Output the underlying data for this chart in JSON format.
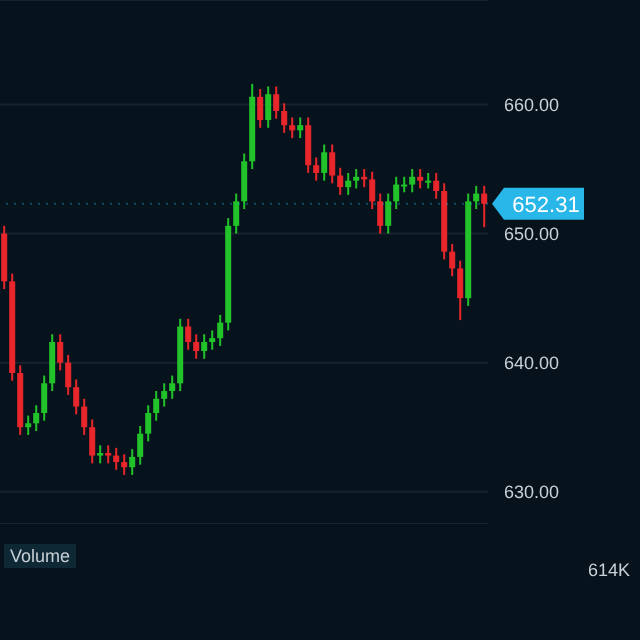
{
  "chart_data": [
    {
      "type": "candlestick",
      "categories": [
        null,
        null,
        null,
        null,
        null,
        null,
        null,
        null,
        null,
        null,
        null,
        null,
        null,
        null,
        null,
        null,
        null,
        null,
        null,
        null,
        null,
        null,
        null,
        null,
        null,
        null,
        null,
        null,
        null,
        null,
        null,
        null,
        null,
        null,
        null,
        null,
        null,
        null,
        null,
        null,
        null,
        null,
        null,
        null,
        null,
        null,
        null,
        null,
        null,
        null,
        null,
        null,
        null,
        null,
        null,
        null,
        null,
        null,
        null,
        null,
        null
      ],
      "ohlc": [
        [
          650.0,
          650.6,
          645.7,
          646.3
        ],
        [
          646.3,
          646.9,
          638.6,
          639.2
        ],
        [
          639.2,
          639.8,
          634.4,
          635.0
        ],
        [
          635.0,
          635.9,
          634.4,
          635.3
        ],
        [
          635.3,
          636.7,
          634.7,
          636.1
        ],
        [
          636.1,
          639.0,
          635.5,
          638.4
        ],
        [
          638.4,
          642.2,
          637.8,
          641.6
        ],
        [
          641.6,
          642.2,
          639.4,
          640.0
        ],
        [
          640.0,
          640.6,
          637.5,
          638.1
        ],
        [
          638.1,
          638.7,
          636.0,
          636.6
        ],
        [
          636.6,
          637.2,
          634.4,
          635.0
        ],
        [
          635.0,
          635.6,
          632.2,
          632.8
        ],
        [
          632.8,
          633.6,
          632.2,
          633.0
        ],
        [
          633.0,
          633.6,
          632.2,
          632.8
        ],
        [
          632.8,
          633.4,
          631.7,
          632.3
        ],
        [
          632.3,
          632.9,
          631.3,
          631.9
        ],
        [
          631.9,
          633.3,
          631.3,
          632.7
        ],
        [
          632.7,
          635.1,
          632.1,
          634.5
        ],
        [
          634.5,
          636.7,
          633.9,
          636.1
        ],
        [
          636.1,
          637.8,
          635.5,
          637.2
        ],
        [
          637.2,
          638.4,
          636.6,
          637.8
        ],
        [
          637.8,
          639.0,
          637.2,
          638.4
        ],
        [
          638.4,
          643.4,
          637.8,
          642.8
        ],
        [
          642.8,
          643.4,
          641.0,
          641.6
        ],
        [
          641.6,
          642.2,
          640.3,
          640.9
        ],
        [
          640.9,
          642.2,
          640.3,
          641.6
        ],
        [
          641.6,
          642.5,
          641.0,
          641.9
        ],
        [
          641.9,
          643.7,
          641.3,
          643.1
        ],
        [
          643.1,
          651.2,
          642.5,
          650.6
        ],
        [
          650.6,
          653.1,
          650.0,
          652.5
        ],
        [
          652.5,
          656.2,
          651.9,
          655.6
        ],
        [
          655.6,
          661.6,
          655.0,
          660.6
        ],
        [
          660.6,
          661.2,
          658.2,
          658.8
        ],
        [
          658.8,
          661.4,
          658.2,
          660.8
        ],
        [
          660.8,
          661.4,
          658.9,
          659.5
        ],
        [
          659.5,
          660.1,
          657.8,
          658.4
        ],
        [
          658.4,
          659.0,
          657.4,
          658.0
        ],
        [
          658.0,
          659.0,
          657.4,
          658.4
        ],
        [
          658.4,
          659.0,
          654.7,
          655.3
        ],
        [
          655.3,
          655.9,
          654.1,
          654.7
        ],
        [
          654.7,
          656.9,
          654.1,
          656.3
        ],
        [
          656.3,
          656.9,
          653.9,
          654.5
        ],
        [
          654.5,
          655.1,
          653.0,
          653.6
        ],
        [
          653.6,
          654.7,
          653.0,
          654.1
        ],
        [
          654.1,
          655.0,
          653.5,
          654.4
        ],
        [
          654.4,
          655.0,
          653.6,
          654.2
        ],
        [
          654.2,
          654.8,
          651.9,
          652.5
        ],
        [
          652.5,
          653.1,
          650.0,
          650.6
        ],
        [
          650.6,
          653.1,
          650.0,
          652.5
        ],
        [
          652.5,
          654.4,
          651.9,
          653.8
        ],
        [
          653.8,
          654.4,
          653.2,
          653.8
        ],
        [
          653.8,
          655.0,
          653.2,
          654.4
        ],
        [
          654.4,
          655.0,
          653.5,
          654.1
        ],
        [
          654.1,
          654.7,
          653.5,
          654.1
        ],
        [
          654.1,
          654.7,
          652.7,
          653.3
        ],
        [
          653.3,
          653.9,
          648.0,
          648.6
        ],
        [
          648.6,
          649.2,
          646.7,
          647.3
        ],
        [
          647.3,
          647.9,
          643.3,
          645.0
        ],
        [
          645.0,
          653.1,
          644.4,
          652.5
        ],
        [
          652.5,
          653.7,
          651.9,
          653.1
        ],
        [
          653.1,
          653.7,
          650.5,
          652.31
        ]
      ],
      "colors": [
        "#e8262b",
        "#e8262b",
        "#e8262b",
        "#22c32a",
        "#22c32a",
        "#22c32a",
        "#22c32a",
        "#e8262b",
        "#e8262b",
        "#e8262b",
        "#e8262b",
        "#e8262b",
        "#22c32a",
        "#e8262b",
        "#e8262b",
        "#e8262b",
        "#22c32a",
        "#22c32a",
        "#22c32a",
        "#22c32a",
        "#22c32a",
        "#22c32a",
        "#22c32a",
        "#e8262b",
        "#e8262b",
        "#22c32a",
        "#22c32a",
        "#22c32a",
        "#22c32a",
        "#22c32a",
        "#22c32a",
        "#22c32a",
        "#e8262b",
        "#22c32a",
        "#e8262b",
        "#e8262b",
        "#e8262b",
        "#22c32a",
        "#e8262b",
        "#e8262b",
        "#22c32a",
        "#e8262b",
        "#e8262b",
        "#22c32a",
        "#22c32a",
        "#e8262b",
        "#e8262b",
        "#e8262b",
        "#22c32a",
        "#22c32a",
        "#22c32a",
        "#22c32a",
        "#e8262b",
        "#22c32a",
        "#e8262b",
        "#e8262b",
        "#e8262b",
        "#e8262b",
        "#22c32a",
        "#22c32a",
        "#e8262b"
      ],
      "ylim": [
        627.5,
        668.1
      ],
      "yticks": [
        {
          "value": 630,
          "label": "630.00"
        },
        {
          "value": 640,
          "label": "640.00"
        },
        {
          "value": 650,
          "label": "650.00"
        },
        {
          "value": 660,
          "label": "660.00"
        }
      ],
      "grid": "y",
      "tick_labels": "y",
      "ref_lines": [
        {
          "axis": "y",
          "value": 652.31,
          "label": "652.31",
          "color": "#29b6e8"
        }
      ]
    },
    {
      "type": "other",
      "title": "Volume",
      "annotations": [
        "614K"
      ]
    }
  ]
}
